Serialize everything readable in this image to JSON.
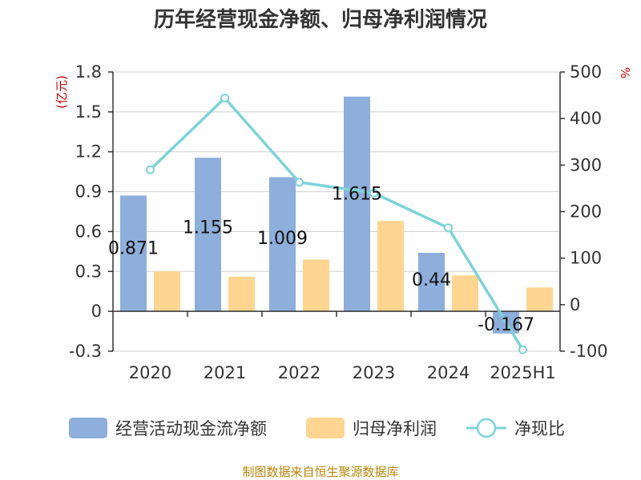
{
  "chart_data": {
    "type": "bar",
    "title": "历年经营现金净额、归母净利润情况",
    "categories": [
      "2020",
      "2021",
      "2022",
      "2023",
      "2024",
      "2025H1"
    ],
    "series": [
      {
        "name": "经营活动现金流净额",
        "type": "bar",
        "axis": "left",
        "values": [
          0.871,
          1.155,
          1.009,
          1.615,
          0.44,
          -0.167
        ],
        "color": "#8eaedb"
      },
      {
        "name": "归母净利润",
        "type": "bar",
        "axis": "left",
        "values": [
          0.3,
          0.26,
          0.39,
          0.68,
          0.27,
          0.18
        ],
        "color": "#ffd591"
      },
      {
        "name": "净现比",
        "type": "line",
        "axis": "right",
        "values": [
          290,
          444,
          263,
          240,
          165,
          -97
        ],
        "color": "#7dd3d8"
      }
    ],
    "data_labels": [
      "0.871",
      "1.155",
      "1.009",
      "1.615",
      "0.44",
      "-0.167"
    ],
    "y_left": {
      "unit": "(亿元)",
      "min": -0.3,
      "max": 1.8,
      "ticks": [
        1.8,
        1.5,
        1.2,
        0.9,
        0.6,
        0.3,
        0,
        -0.3
      ],
      "tick_labels": [
        "1.8",
        "1.5",
        "1.2",
        "0.9",
        "0.6",
        "0.3",
        "0",
        "-0.3"
      ]
    },
    "y_right": {
      "unit": "%",
      "min": -100,
      "max": 500,
      "ticks": [
        500,
        400,
        300,
        200,
        100,
        0,
        -100
      ],
      "tick_labels": [
        "500",
        "400",
        "300",
        "200",
        "100",
        "0",
        "-100"
      ]
    },
    "grid": true,
    "legend": "bottom"
  },
  "source": "制图数据来自恒生聚源数据库"
}
